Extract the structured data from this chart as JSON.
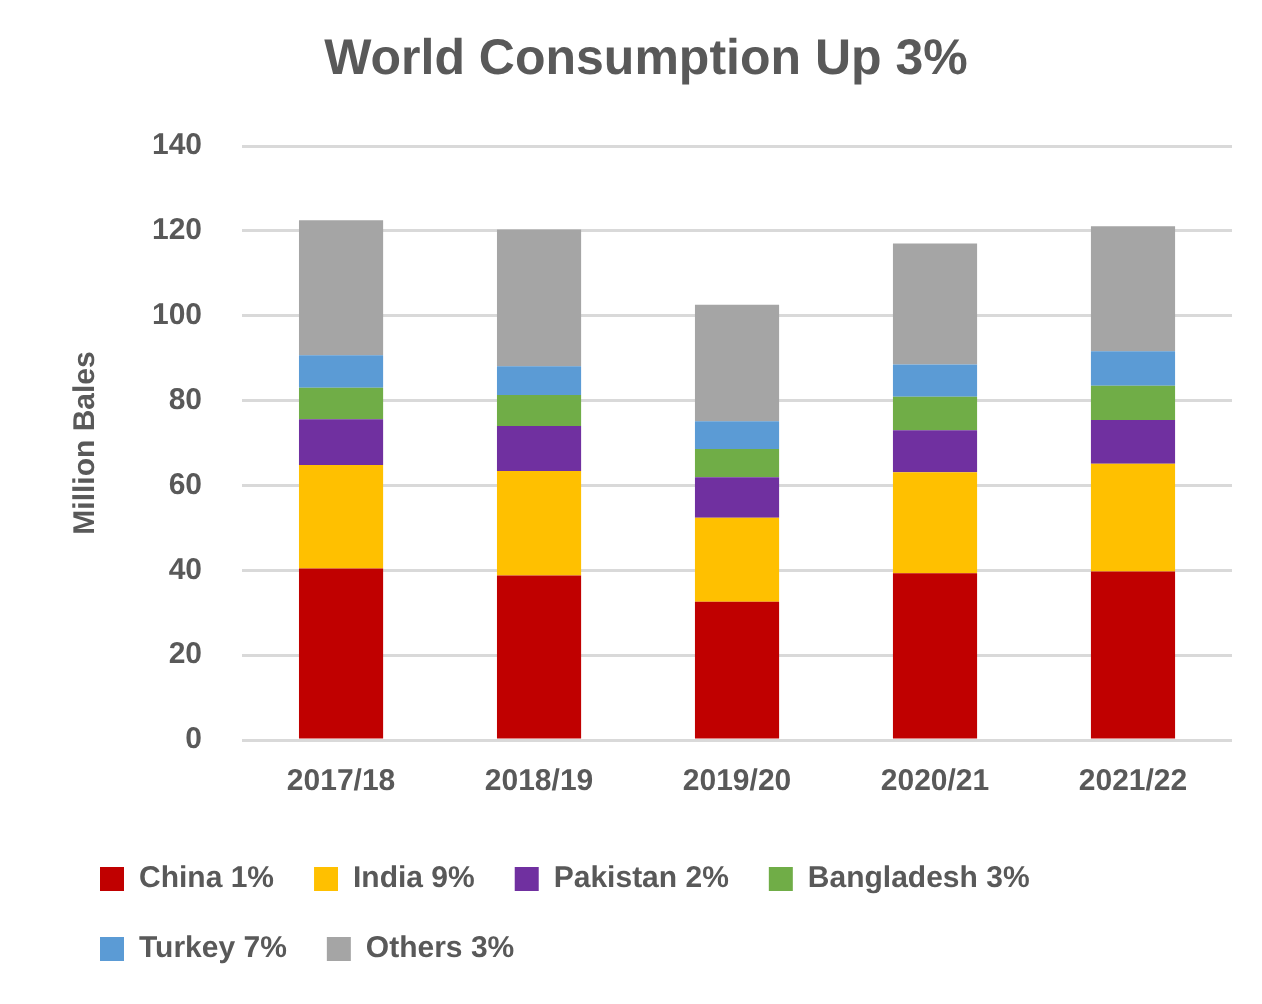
{
  "chart_data": {
    "type": "bar",
    "title": "World Consumption Up 3%",
    "ylabel": "Million Bales",
    "stacked": true,
    "legend": "bottom",
    "grid": "y",
    "categories": [
      "2017/18",
      "2018/19",
      "2019/20",
      "2020/21",
      "2021/22"
    ],
    "ylim": [
      0,
      140
    ],
    "yticks": [
      0,
      20,
      40,
      60,
      80,
      100,
      120,
      140
    ],
    "series": [
      {
        "name": "China 1%",
        "color": "#c00000",
        "values": [
          40.4,
          38.8,
          32.6,
          39.3,
          39.7
        ]
      },
      {
        "name": "India 9%",
        "color": "#ffc000",
        "values": [
          24.4,
          24.6,
          19.8,
          23.8,
          25.4
        ]
      },
      {
        "name": "Pakistan 2%",
        "color": "#7030a0",
        "values": [
          10.8,
          10.6,
          9.5,
          9.9,
          10.3
        ]
      },
      {
        "name": "Bangladesh 3%",
        "color": "#70ad47",
        "values": [
          7.4,
          7.3,
          6.7,
          7.9,
          8.1
        ]
      },
      {
        "name": "Turkey 7%",
        "color": "#5b9bd5",
        "values": [
          7.7,
          6.8,
          6.5,
          7.6,
          8.1
        ]
      },
      {
        "name": "Others 3%",
        "color": "#a5a5a5",
        "values": [
          31.8,
          32.2,
          27.5,
          28.5,
          29.5
        ]
      }
    ]
  }
}
